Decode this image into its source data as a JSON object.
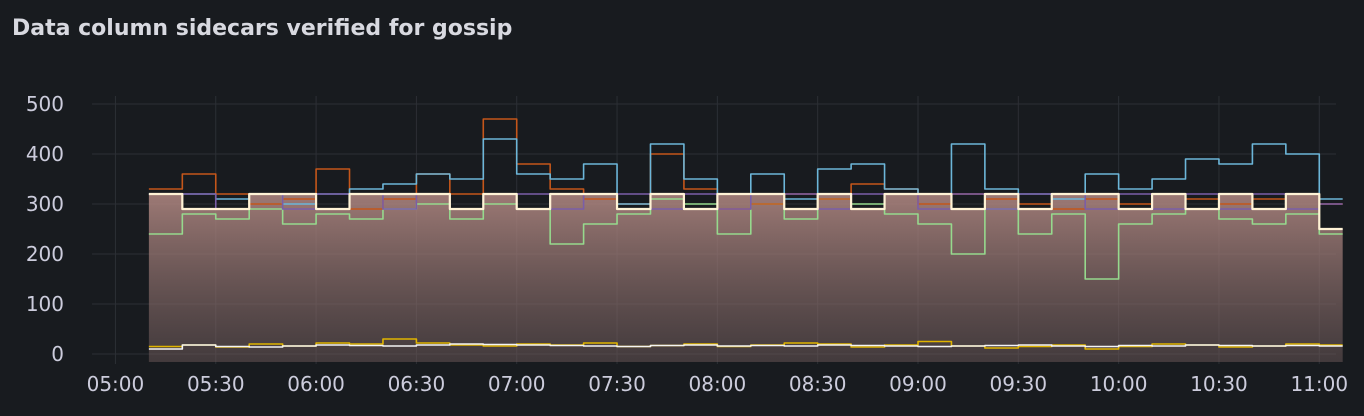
{
  "panel": {
    "title": "Data column sidecars verified for gossip"
  },
  "chart_data": {
    "type": "line",
    "title": "Data column sidecars verified for gossip",
    "xlabel": "",
    "ylabel": "",
    "ylim": [
      0,
      500
    ],
    "y_ticks": [
      "0",
      "100",
      "200",
      "300",
      "400",
      "500"
    ],
    "y_tick_values": [
      0,
      100,
      200,
      300,
      400,
      500
    ],
    "x_ticks": [
      "05:00",
      "05:30",
      "06:00",
      "06:30",
      "07:00",
      "07:30",
      "08:00",
      "08:30",
      "09:00",
      "09:30",
      "10:00",
      "10:30",
      "11:00"
    ],
    "x_range_minutes": [
      290,
      665
    ],
    "x_minutes_start": 310,
    "x_step_minutes": 10,
    "grid": true,
    "legend": "none",
    "series": [
      {
        "name": "series-green",
        "color": "#96d98d",
        "fill": false,
        "values": [
          240,
          280,
          270,
          290,
          260,
          280,
          270,
          290,
          300,
          270,
          300,
          290,
          220,
          260,
          280,
          310,
          300,
          240,
          300,
          270,
          310,
          300,
          280,
          260,
          200,
          290,
          240,
          280,
          150,
          260,
          280,
          290,
          270,
          260,
          280,
          240
        ]
      },
      {
        "name": "series-orange",
        "color": "#c4561a",
        "fill": false,
        "values": [
          330,
          360,
          320,
          300,
          310,
          370,
          290,
          310,
          360,
          320,
          470,
          380,
          330,
          310,
          300,
          400,
          330,
          290,
          300,
          320,
          310,
          340,
          330,
          300,
          320,
          310,
          300,
          290,
          310,
          300,
          320,
          310,
          300,
          310,
          320,
          300
        ]
      },
      {
        "name": "series-blue",
        "color": "#6cb6d9",
        "fill": false,
        "values": [
          320,
          320,
          310,
          320,
          300,
          320,
          330,
          340,
          360,
          350,
          430,
          360,
          350,
          380,
          300,
          420,
          350,
          320,
          360,
          310,
          370,
          380,
          330,
          320,
          420,
          330,
          320,
          310,
          360,
          330,
          350,
          390,
          380,
          420,
          400,
          310
        ]
      },
      {
        "name": "series-purple",
        "color": "#7a5ea8",
        "fill": false,
        "values": [
          320,
          320,
          290,
          320,
          290,
          320,
          320,
          290,
          320,
          290,
          320,
          320,
          290,
          320,
          320,
          290,
          320,
          290,
          320,
          320,
          290,
          320,
          320,
          290,
          320,
          290,
          320,
          320,
          290,
          320,
          290,
          320,
          290,
          320,
          290,
          300
        ]
      },
      {
        "name": "series-total",
        "color": "#fff3d6",
        "fill": true,
        "values": [
          320,
          290,
          290,
          320,
          320,
          290,
          320,
          320,
          320,
          290,
          320,
          290,
          320,
          320,
          290,
          320,
          290,
          320,
          320,
          290,
          320,
          290,
          320,
          320,
          290,
          320,
          290,
          320,
          320,
          290,
          320,
          290,
          320,
          290,
          320,
          250
        ]
      },
      {
        "name": "series-low-yellow",
        "color": "#e0b400",
        "fill": false,
        "values": [
          15,
          18,
          14,
          20,
          16,
          22,
          20,
          30,
          22,
          18,
          16,
          20,
          18,
          22,
          15,
          17,
          20,
          15,
          18,
          22,
          20,
          14,
          18,
          25,
          16,
          12,
          15,
          18,
          10,
          15,
          20,
          18,
          14,
          16,
          20,
          18
        ]
      },
      {
        "name": "series-low-white",
        "color": "#f4f4f4",
        "fill": false,
        "values": [
          10,
          18,
          15,
          14,
          16,
          18,
          17,
          16,
          18,
          20,
          19,
          18,
          17,
          16,
          15,
          17,
          18,
          16,
          17,
          16,
          18,
          17,
          16,
          15,
          16,
          17,
          18,
          16,
          15,
          17,
          16,
          18,
          17,
          16,
          17,
          16
        ]
      }
    ]
  }
}
